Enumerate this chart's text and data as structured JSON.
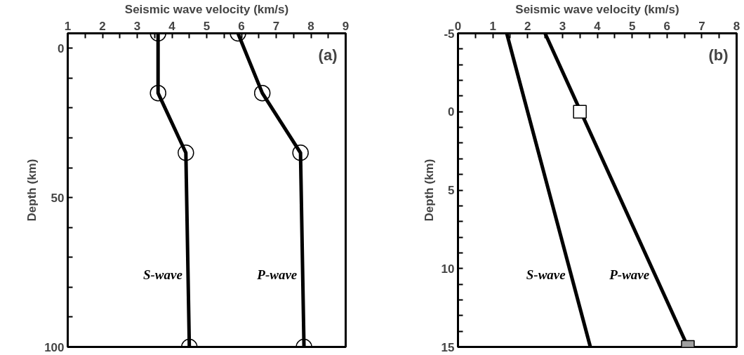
{
  "chart_data": [
    {
      "type": "line",
      "xlabel": "Seismic wave velocity (km/s)",
      "ylabel": "Depth (km)",
      "xlim": [
        1,
        9
      ],
      "ylim": [
        100,
        -5
      ],
      "xticks": [
        1,
        {
          "value": 1.5,
          "label": null
        },
        2,
        {
          "value": 2.5,
          "label": null
        },
        3,
        {
          "value": 3.5,
          "label": null
        },
        4,
        {
          "value": 4.5,
          "label": null
        },
        5,
        {
          "value": 5.5,
          "label": null
        },
        6,
        {
          "value": 6.5,
          "label": null
        },
        7,
        {
          "value": 7.5,
          "label": null
        },
        8,
        {
          "value": 8.5,
          "label": null
        },
        9
      ],
      "yticks": [
        0,
        {
          "value": 10,
          "label": null
        },
        {
          "value": 20,
          "label": null
        },
        {
          "value": 30,
          "label": null
        },
        {
          "value": 40,
          "label": null
        },
        50,
        {
          "value": 60,
          "label": null
        },
        {
          "value": 70,
          "label": null
        },
        {
          "value": 80,
          "label": null
        },
        {
          "value": 90,
          "label": null
        },
        100
      ],
      "grid": false,
      "marker": "circle",
      "line_style": "solid",
      "series": [
        {
          "name": "S-wave",
          "color": "#000000",
          "x": [
            3.6,
            3.6,
            4.4,
            4.5
          ],
          "values": [
            -5,
            15,
            35,
            100
          ]
        },
        {
          "name": "P-wave",
          "color": "#000000",
          "x": [
            5.9,
            6.6,
            7.7,
            7.8
          ],
          "values": [
            -5,
            15,
            35,
            100
          ]
        }
      ],
      "annotations": [
        "(a)"
      ]
    },
    {
      "type": "line",
      "xlabel": "Seismic wave velocity (km/s)",
      "ylabel": "Depth (km)",
      "xlim": [
        0,
        8
      ],
      "ylim": [
        15,
        -5
      ],
      "xticks": [
        0,
        {
          "value": 0.5,
          "label": null
        },
        1,
        {
          "value": 1.5,
          "label": null
        },
        2,
        {
          "value": 2.5,
          "label": null
        },
        3,
        {
          "value": 3.5,
          "label": null
        },
        4,
        {
          "value": 4.5,
          "label": null
        },
        5,
        {
          "value": 5.5,
          "label": null
        },
        6,
        {
          "value": 6.5,
          "label": null
        },
        7,
        {
          "value": 7.5,
          "label": null
        },
        8
      ],
      "yticks": [
        -5,
        {
          "value": -4,
          "label": null
        },
        {
          "value": -3,
          "label": null
        },
        {
          "value": -2,
          "label": null
        },
        {
          "value": -1,
          "label": null
        },
        0,
        {
          "value": 1,
          "label": null
        },
        {
          "value": 2,
          "label": null
        },
        {
          "value": 3,
          "label": null
        },
        {
          "value": 4,
          "label": null
        },
        5,
        {
          "value": 6,
          "label": null
        },
        {
          "value": 7,
          "label": null
        },
        {
          "value": 8,
          "label": null
        },
        {
          "value": 9,
          "label": null
        },
        10,
        {
          "value": 11,
          "label": null
        },
        {
          "value": 12,
          "label": null
        },
        {
          "value": 13,
          "label": null
        },
        {
          "value": 14,
          "label": null
        },
        15
      ],
      "grid": false,
      "marker": "none",
      "line_style": "solid",
      "series": [
        {
          "name": "S-wave",
          "color": "#000000",
          "x": [
            1.4,
            3.8
          ],
          "values": [
            -5,
            15
          ]
        },
        {
          "name": "P-wave",
          "color": "#000000",
          "x": [
            2.5,
            6.6
          ],
          "values": [
            -5,
            15
          ]
        },
        {
          "type": "scatter",
          "marker": "square",
          "color": "#ffffff",
          "x": [
            3.5
          ],
          "values": [
            0
          ]
        },
        {
          "type": "scatter",
          "marker": "square",
          "color": "#a0a0a0",
          "x": [
            6.6
          ],
          "values": [
            15
          ]
        }
      ],
      "annotations": [
        "(b)"
      ]
    }
  ]
}
